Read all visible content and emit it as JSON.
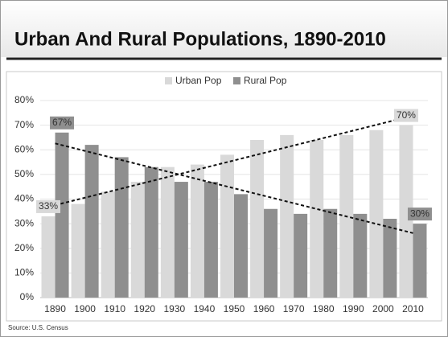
{
  "chart_data": {
    "type": "bar",
    "title": "Urban And Rural Populations, 1890-2010",
    "source": "Source: U.S. Census",
    "categories": [
      "1890",
      "1900",
      "1910",
      "1920",
      "1930",
      "1940",
      "1950",
      "1960",
      "1970",
      "1980",
      "1990",
      "2000",
      "2010"
    ],
    "series": [
      {
        "name": "Urban Pop",
        "color": "#d9d9d9",
        "values": [
          33,
          38,
          43,
          47,
          53,
          54,
          58,
          64,
          66,
          64,
          66,
          68,
          70
        ],
        "value_labels": [
          "33%",
          null,
          null,
          null,
          null,
          null,
          null,
          null,
          null,
          null,
          null,
          null,
          "70%"
        ]
      },
      {
        "name": "Rural Pop",
        "color": "#8f8f8f",
        "values": [
          67,
          62,
          57,
          53,
          47,
          47,
          42,
          36,
          34,
          36,
          34,
          32,
          30
        ],
        "value_labels": [
          "67%",
          null,
          null,
          null,
          null,
          null,
          null,
          null,
          null,
          null,
          null,
          null,
          "30%"
        ]
      }
    ],
    "ylim": [
      0,
      80
    ],
    "yticks": [
      {
        "value": 0,
        "label": "0%"
      },
      {
        "value": 10,
        "label": "10%"
      },
      {
        "value": 20,
        "label": "20%"
      },
      {
        "value": 30,
        "label": "30%"
      },
      {
        "value": 40,
        "label": "40%"
      },
      {
        "value": 50,
        "label": "50%"
      },
      {
        "value": 60,
        "label": "60%"
      },
      {
        "value": 70,
        "label": "70%"
      },
      {
        "value": 80,
        "label": "80%"
      }
    ],
    "grid": true,
    "trendline": true,
    "legend": "top"
  }
}
